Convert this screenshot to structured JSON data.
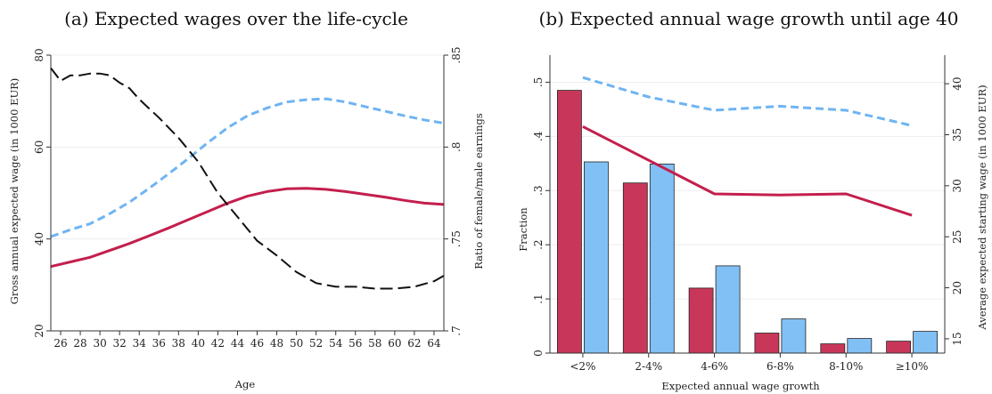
{
  "chart_data": [
    {
      "type": "line",
      "title": "(a) Expected wages over the life-cycle",
      "xlabel": "Age",
      "ylabel": "Gross annual expected wage (in 1000 EUR)",
      "y2label": "Ratio of female/male earnings",
      "xlim": [
        25,
        65
      ],
      "ylim": [
        20,
        80
      ],
      "y2lim": [
        0.7,
        0.85
      ],
      "x_ticks": [
        26,
        28,
        30,
        32,
        34,
        36,
        38,
        40,
        42,
        44,
        46,
        48,
        50,
        52,
        54,
        56,
        58,
        60,
        62,
        64
      ],
      "y_ticks": [
        20,
        40,
        60,
        80
      ],
      "y2_ticks": [
        {
          "v": 0.7,
          "label": ".7"
        },
        {
          "v": 0.75,
          "label": ".75"
        },
        {
          "v": 0.8,
          "label": ".8"
        },
        {
          "v": 0.85,
          "label": ".85"
        }
      ],
      "grid": true,
      "series": [
        {
          "axis": "left",
          "color": "#6fb4f2",
          "dash": "dashed",
          "width": 3,
          "points": [
            [
              25,
              40.5
            ],
            [
              27,
              42
            ],
            [
              29,
              43.3
            ],
            [
              31,
              45.5
            ],
            [
              33,
              48
            ],
            [
              35,
              51
            ],
            [
              37,
              54.2
            ],
            [
              39,
              57.5
            ],
            [
              41,
              61
            ],
            [
              43,
              64.2
            ],
            [
              45,
              66.8
            ],
            [
              47,
              68.5
            ],
            [
              49,
              69.8
            ],
            [
              51,
              70.3
            ],
            [
              53,
              70.5
            ],
            [
              55,
              69.8
            ],
            [
              57,
              68.8
            ],
            [
              59,
              67.8
            ],
            [
              61,
              66.8
            ],
            [
              63,
              65.9
            ],
            [
              65,
              65.2
            ]
          ]
        },
        {
          "axis": "left",
          "color": "#c41e4d",
          "dash": "solid",
          "width": 3,
          "points": [
            [
              25,
              34
            ],
            [
              27,
              35
            ],
            [
              29,
              36
            ],
            [
              31,
              37.5
            ],
            [
              33,
              39
            ],
            [
              35,
              40.7
            ],
            [
              37,
              42.4
            ],
            [
              39,
              44.2
            ],
            [
              41,
              46
            ],
            [
              43,
              47.8
            ],
            [
              45,
              49.3
            ],
            [
              47,
              50.3
            ],
            [
              49,
              50.9
            ],
            [
              51,
              51
            ],
            [
              53,
              50.8
            ],
            [
              55,
              50.3
            ],
            [
              57,
              49.7
            ],
            [
              59,
              49.1
            ],
            [
              61,
              48.4
            ],
            [
              63,
              47.8
            ],
            [
              65,
              47.5
            ]
          ]
        },
        {
          "axis": "right",
          "color": "#111111",
          "dash": "longdash",
          "width": 2,
          "points": [
            [
              25,
              0.843
            ],
            [
              26,
              0.836
            ],
            [
              27,
              0.839
            ],
            [
              28,
              0.839
            ],
            [
              29,
              0.84
            ],
            [
              30,
              0.84
            ],
            [
              31,
              0.839
            ],
            [
              32,
              0.835
            ],
            [
              33,
              0.832
            ],
            [
              34,
              0.826
            ],
            [
              36,
              0.816
            ],
            [
              38,
              0.805
            ],
            [
              40,
              0.792
            ],
            [
              42,
              0.775
            ],
            [
              44,
              0.762
            ],
            [
              46,
              0.749
            ],
            [
              48,
              0.741
            ],
            [
              50,
              0.732
            ],
            [
              52,
              0.726
            ],
            [
              54,
              0.724
            ],
            [
              56,
              0.724
            ],
            [
              58,
              0.723
            ],
            [
              60,
              0.723
            ],
            [
              62,
              0.724
            ],
            [
              64,
              0.727
            ],
            [
              65,
              0.73
            ]
          ]
        }
      ]
    },
    {
      "type": "bar",
      "title": "(b) Expected annual wage growth until age 40",
      "xlabel": "Expected annual wage growth",
      "ylabel": "Fraction",
      "y2label": "Average expected starting wage (in 1000 EUR)",
      "categories": [
        "<2%",
        "2-4%",
        "4-6%",
        "6-8%",
        "8-10%",
        "≥10%"
      ],
      "ylim": [
        0,
        0.5
      ],
      "y_ticks": [
        {
          "v": 0,
          "label": "0"
        },
        {
          "v": 0.1,
          "label": ".1"
        },
        {
          "v": 0.2,
          "label": ".2"
        },
        {
          "v": 0.3,
          "label": ".3"
        },
        {
          "v": 0.4,
          "label": ".4"
        },
        {
          "v": 0.5,
          "label": ".5"
        }
      ],
      "y2lim": [
        15,
        40
      ],
      "y2_ticks": [
        15,
        20,
        25,
        30,
        35,
        40
      ],
      "grid": true,
      "bar_series": [
        {
          "color": "#c8375a",
          "values": [
            0.485,
            0.314,
            0.12,
            0.037,
            0.017,
            0.022
          ]
        },
        {
          "color": "#80c0f5",
          "values": [
            0.353,
            0.349,
            0.161,
            0.063,
            0.027,
            0.04
          ]
        }
      ],
      "line_series": [
        {
          "axis": "right",
          "color": "#6fb4f2",
          "dash": "dashed",
          "width": 3,
          "values": [
            40.6,
            38.7,
            37.4,
            37.8,
            37.4,
            35.9
          ]
        },
        {
          "axis": "right",
          "color": "#c41e4d",
          "dash": "solid",
          "width": 3,
          "values": [
            35.8,
            32.5,
            29.2,
            29.1,
            29.2,
            27.1
          ]
        }
      ]
    }
  ]
}
